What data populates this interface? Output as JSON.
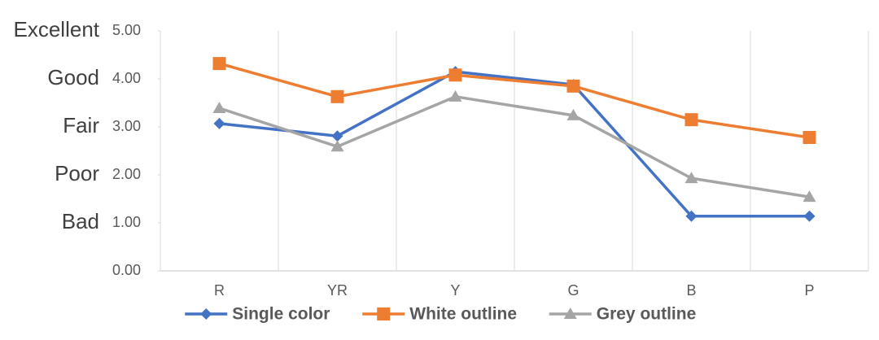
{
  "chart_data": {
    "type": "line",
    "categories": [
      "R",
      "YR",
      "Y",
      "G",
      "B",
      "P"
    ],
    "series": [
      {
        "name": "Single color",
        "color": "#4472c4",
        "marker": "diamond",
        "values": [
          3.07,
          2.81,
          4.15,
          3.88,
          1.14,
          1.14
        ]
      },
      {
        "name": "White outline",
        "color": "#ed7d31",
        "marker": "square",
        "values": [
          4.32,
          3.63,
          4.08,
          3.85,
          3.15,
          2.78
        ]
      },
      {
        "name": "Grey outline",
        "color": "#a5a5a5",
        "marker": "triangle",
        "values": [
          3.39,
          2.59,
          3.63,
          3.24,
          1.93,
          1.54
        ]
      }
    ],
    "ylim": [
      0,
      5
    ],
    "yticks": [
      {
        "value": 0,
        "label": "0.00"
      },
      {
        "value": 1,
        "label": "1.00"
      },
      {
        "value": 2,
        "label": "2.00"
      },
      {
        "value": 3,
        "label": "3.00"
      },
      {
        "value": 4,
        "label": "4.00"
      },
      {
        "value": 5,
        "label": "5.00"
      }
    ],
    "rating_labels": [
      {
        "value": 1,
        "label": "Bad"
      },
      {
        "value": 2,
        "label": "Poor"
      },
      {
        "value": 3,
        "label": "Fair"
      },
      {
        "value": 4,
        "label": "Good"
      },
      {
        "value": 5,
        "label": "Excellent"
      }
    ],
    "legend": "bottom"
  }
}
